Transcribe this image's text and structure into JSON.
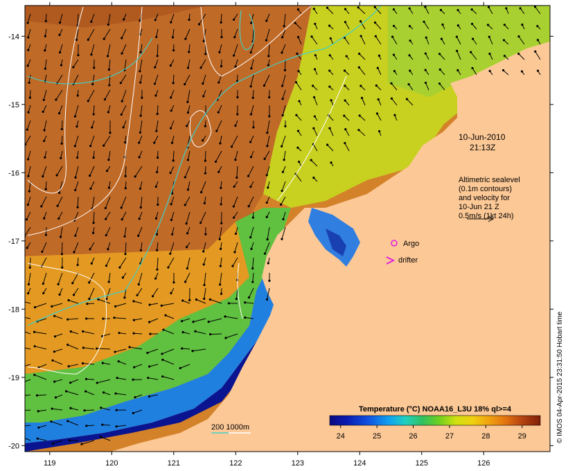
{
  "map": {
    "date_line": "10-Jun-2010",
    "time_line": "21:13Z",
    "velocity_note": [
      "Altimetric sealevel",
      "(0.1m contours)",
      "and velocity for",
      "10-Jun 21 Z",
      "0.5m/s (1kt 24h)"
    ],
    "argo_label": "Argo",
    "drifter_label": "drifter",
    "depth_label": "200  1000m",
    "credit": "© IMOS 04-Apr-2015 23:31:50 Hobart time",
    "longitude_ticks": [
      "119",
      "120",
      "121",
      "122",
      "123",
      "124",
      "125",
      "126"
    ],
    "latitude_ticks": [
      "-14",
      "-15",
      "-16",
      "-17",
      "-18",
      "-19",
      "-20"
    ],
    "colorbar": {
      "title": "Temperature (°C) NOAA16_L3U 18% ql>=4",
      "ticks": [
        "24",
        "25",
        "26",
        "27",
        "28",
        "29"
      ],
      "range": [
        23.7,
        29.5
      ]
    },
    "colors": {
      "land": "#FCC896",
      "cold": "#081080",
      "warm": "#8C2E08",
      "contour_200m": "#40D0C8",
      "argo": "#E020E0",
      "drifter": "#E020E0"
    }
  }
}
